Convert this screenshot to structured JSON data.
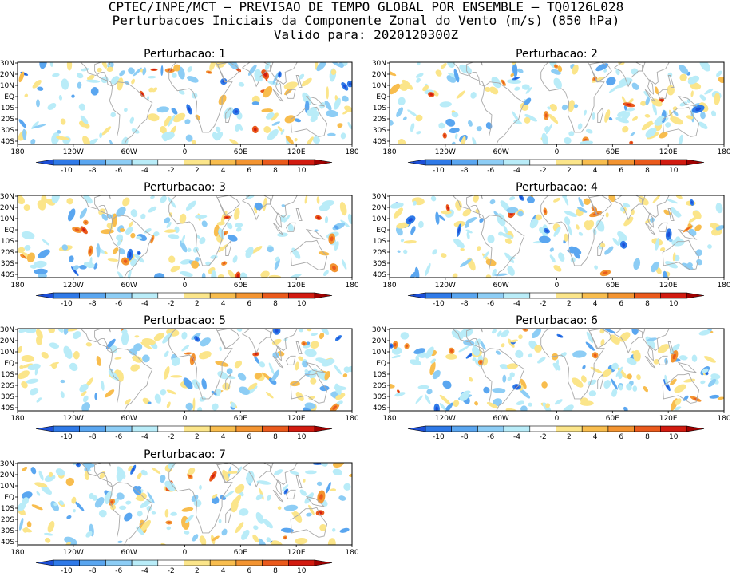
{
  "header": {
    "line1": "CPTEC/INPE/MCT – PREVISAO DE TEMPO GLOBAL POR ENSEMBLE – TQ0126L028",
    "line2": "Perturbacoes Iniciais da Componente Zonal do Vento (m/s) (850 hPa)",
    "line3": "Valido para: 2020120300Z"
  },
  "panels": [
    {
      "title": "Perturbacao: 1"
    },
    {
      "title": "Perturbacao: 2"
    },
    {
      "title": "Perturbacao: 3"
    },
    {
      "title": "Perturbacao: 4"
    },
    {
      "title": "Perturbacao: 5"
    },
    {
      "title": "Perturbacao: 6"
    },
    {
      "title": "Perturbacao: 7"
    }
  ],
  "axes": {
    "lat_ticks": [
      "30N",
      "20N",
      "10N",
      "EQ",
      "10S",
      "20S",
      "30S",
      "40S"
    ],
    "lon_ticks": [
      "180",
      "120W",
      "60W",
      "0",
      "60E",
      "120E",
      "180"
    ]
  },
  "colorbar": {
    "labels": [
      "-10",
      "-8",
      "-6",
      "-4",
      "-2",
      "2",
      "4",
      "6",
      "8",
      "10"
    ],
    "colors": [
      "#1c4fd8",
      "#2f7ae8",
      "#5aa6f0",
      "#8dcdf5",
      "#b9ecf8",
      "#ffffff",
      "#fbe58a",
      "#f8bd4e",
      "#f39431",
      "#ea5a1c",
      "#d21b10",
      "#a00000"
    ]
  }
}
